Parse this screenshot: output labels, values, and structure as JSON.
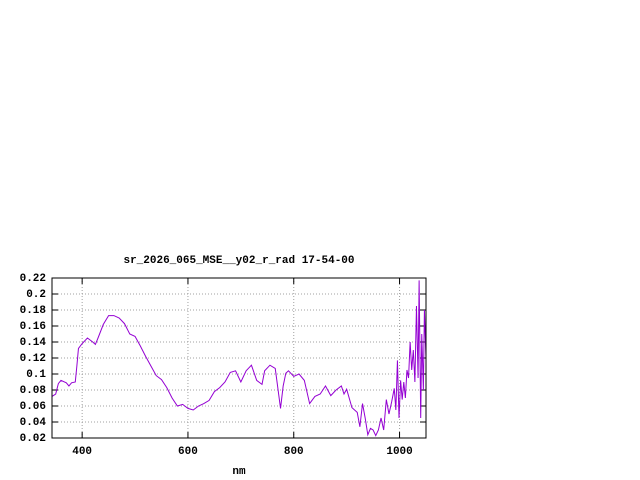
{
  "chart_data": {
    "type": "line",
    "title": "sr_2026_065_MSE__y02_r_rad 17-54-00",
    "x_label": "nm",
    "x": [
      343,
      350,
      355,
      360,
      370,
      375,
      380,
      387,
      390,
      393,
      400,
      410,
      420,
      425,
      430,
      440,
      450,
      460,
      470,
      480,
      490,
      500,
      510,
      520,
      530,
      540,
      550,
      560,
      570,
      580,
      590,
      600,
      610,
      620,
      630,
      640,
      650,
      660,
      670,
      680,
      690,
      700,
      710,
      720,
      730,
      740,
      745,
      755,
      765,
      775,
      780,
      785,
      790,
      800,
      810,
      820,
      830,
      840,
      850,
      860,
      870,
      880,
      890,
      895,
      900,
      910,
      920,
      925,
      930,
      935,
      940,
      945,
      950,
      955,
      960,
      965,
      970,
      975,
      980,
      985,
      990,
      993,
      996,
      999,
      1002,
      1005,
      1008,
      1011,
      1014,
      1017,
      1020,
      1023,
      1026,
      1029,
      1032,
      1035,
      1037,
      1040,
      1042,
      1045,
      1047,
      1050
    ],
    "values": [
      0.072,
      0.075,
      0.088,
      0.092,
      0.089,
      0.085,
      0.089,
      0.09,
      0.11,
      0.132,
      0.138,
      0.145,
      0.14,
      0.137,
      0.145,
      0.162,
      0.173,
      0.173,
      0.17,
      0.163,
      0.15,
      0.147,
      0.135,
      0.122,
      0.11,
      0.098,
      0.093,
      0.083,
      0.07,
      0.06,
      0.062,
      0.057,
      0.055,
      0.06,
      0.063,
      0.067,
      0.078,
      0.083,
      0.09,
      0.102,
      0.104,
      0.09,
      0.104,
      0.111,
      0.092,
      0.087,
      0.104,
      0.111,
      0.107,
      0.057,
      0.085,
      0.101,
      0.104,
      0.097,
      0.1,
      0.092,
      0.063,
      0.072,
      0.075,
      0.085,
      0.073,
      0.08,
      0.085,
      0.075,
      0.081,
      0.058,
      0.052,
      0.034,
      0.063,
      0.045,
      0.024,
      0.032,
      0.03,
      0.023,
      0.03,
      0.045,
      0.03,
      0.068,
      0.05,
      0.065,
      0.082,
      0.055,
      0.117,
      0.045,
      0.092,
      0.068,
      0.09,
      0.07,
      0.105,
      0.095,
      0.14,
      0.105,
      0.13,
      0.09,
      0.185,
      0.095,
      0.217,
      0.045,
      0.15,
      0.08,
      0.18,
      0.12
    ],
    "color": "#9400d3",
    "xlim": [
      343,
      1050
    ],
    "xticks": [
      400,
      600,
      800,
      1000
    ],
    "ylim": [
      0.02,
      0.22
    ],
    "yticks": [
      0.02,
      0.04,
      0.06,
      0.08,
      0.1,
      0.12,
      0.14,
      0.16,
      0.18,
      0.2,
      0.22
    ],
    "grid": true
  }
}
